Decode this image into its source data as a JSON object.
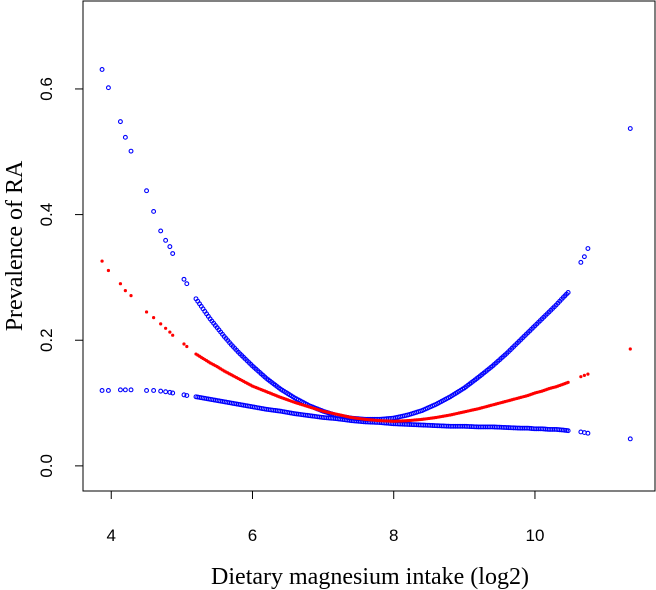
{
  "chart_data": {
    "type": "scatter",
    "title": "",
    "xlabel": "Dietary magnesium intake (log2)",
    "ylabel": "Prevalence of RA",
    "xlim": [
      3.6,
      11.7
    ],
    "ylim": [
      -0.04,
      0.74
    ],
    "x_ticks": [
      4,
      6,
      8,
      10
    ],
    "y_ticks": [
      0.0,
      0.2,
      0.4,
      0.6
    ],
    "x_tick_labels": [
      "4",
      "6",
      "8",
      "10"
    ],
    "y_tick_labels": [
      "0.0",
      "0.2",
      "0.4",
      "0.6"
    ],
    "grid": false,
    "legend": "none",
    "x": [
      3.87,
      3.96,
      4.13,
      4.2,
      4.28,
      4.5,
      4.6,
      4.7,
      4.77,
      4.83,
      4.87,
      5.03,
      5.07,
      5.2,
      5.3,
      5.4,
      5.5,
      5.6,
      5.7,
      5.8,
      5.9,
      6.0,
      6.2,
      6.4,
      6.6,
      6.8,
      7.0,
      7.2,
      7.4,
      7.6,
      7.8,
      8.0,
      8.2,
      8.4,
      8.6,
      8.8,
      9.0,
      9.2,
      9.4,
      9.6,
      9.8,
      9.9,
      10.0,
      10.1,
      10.2,
      10.3,
      10.4,
      10.47,
      10.65,
      10.7,
      10.75,
      11.35
    ],
    "series": [
      {
        "color": "#ff0000",
        "marker": "dot",
        "values": [
          0.326,
          0.311,
          0.29,
          0.279,
          0.271,
          0.245,
          0.236,
          0.226,
          0.219,
          0.213,
          0.208,
          0.194,
          0.19,
          0.178,
          0.171,
          0.164,
          0.158,
          0.151,
          0.145,
          0.139,
          0.133,
          0.127,
          0.118,
          0.109,
          0.101,
          0.094,
          0.087,
          0.082,
          0.077,
          0.074,
          0.072,
          0.071,
          0.072,
          0.074,
          0.077,
          0.081,
          0.086,
          0.091,
          0.097,
          0.103,
          0.109,
          0.112,
          0.116,
          0.119,
          0.123,
          0.126,
          0.13,
          0.133,
          0.142,
          0.144,
          0.146,
          0.186
        ]
      },
      {
        "color": "#0000ff",
        "marker": "circle",
        "values": [
          0.631,
          0.602,
          0.548,
          0.523,
          0.501,
          0.438,
          0.405,
          0.374,
          0.359,
          0.349,
          0.338,
          0.297,
          0.29,
          0.266,
          0.25,
          0.234,
          0.22,
          0.206,
          0.193,
          0.181,
          0.17,
          0.159,
          0.139,
          0.122,
          0.108,
          0.096,
          0.087,
          0.08,
          0.076,
          0.074,
          0.074,
          0.076,
          0.081,
          0.088,
          0.098,
          0.11,
          0.124,
          0.141,
          0.159,
          0.179,
          0.201,
          0.212,
          0.223,
          0.234,
          0.245,
          0.256,
          0.268,
          0.276,
          0.324,
          0.333,
          0.346,
          0.537
        ]
      },
      {
        "color": "#0000ff",
        "marker": "circle",
        "values": [
          0.12,
          0.12,
          0.121,
          0.121,
          0.121,
          0.12,
          0.12,
          0.119,
          0.118,
          0.117,
          0.116,
          0.113,
          0.112,
          0.11,
          0.108,
          0.106,
          0.104,
          0.102,
          0.1,
          0.098,
          0.096,
          0.094,
          0.09,
          0.087,
          0.083,
          0.08,
          0.077,
          0.075,
          0.072,
          0.07,
          0.069,
          0.067,
          0.066,
          0.065,
          0.064,
          0.063,
          0.063,
          0.062,
          0.062,
          0.061,
          0.06,
          0.06,
          0.059,
          0.059,
          0.058,
          0.058,
          0.057,
          0.056,
          0.054,
          0.053,
          0.052,
          0.043
        ]
      }
    ]
  }
}
